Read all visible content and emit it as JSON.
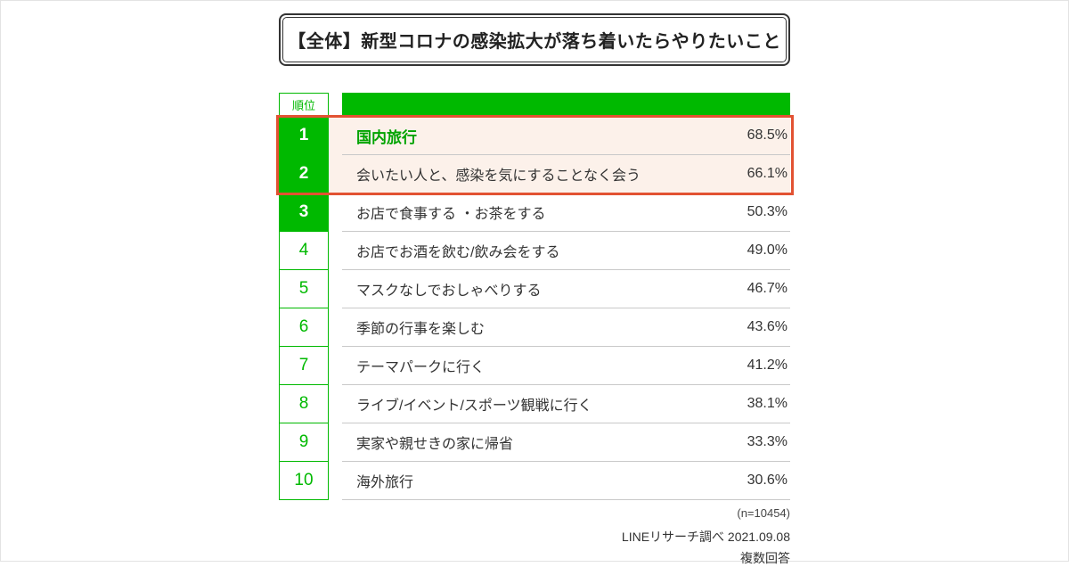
{
  "colors": {
    "green": "#00b900",
    "highlight_border": "#e25232",
    "highlight_bg": "#fcf1ea"
  },
  "title": "【全体】新型コロナの感染拡大が落ち着いたらやりたいこと",
  "table": {
    "rank_header": "順位",
    "rows": [
      {
        "rank": "1",
        "label": "国内旅行",
        "value": "68.5%"
      },
      {
        "rank": "2",
        "label": "会いたい人と、感染を気にすることなく会う",
        "value": "66.1%"
      },
      {
        "rank": "3",
        "label": "お店で食事する ・お茶をする",
        "value": "50.3%"
      },
      {
        "rank": "4",
        "label": "お店でお酒を飲む/飲み会をする",
        "value": "49.0%"
      },
      {
        "rank": "5",
        "label": "マスクなしでおしゃべりする",
        "value": "46.7%"
      },
      {
        "rank": "6",
        "label": "季節の行事を楽しむ",
        "value": "43.6%"
      },
      {
        "rank": "7",
        "label": "テーマパークに行く",
        "value": "41.2%"
      },
      {
        "rank": "8",
        "label": "ライブ/イベント/スポーツ観戦に行く",
        "value": "38.1%"
      },
      {
        "rank": "9",
        "label": "実家や親せきの家に帰省",
        "value": "33.3%"
      },
      {
        "rank": "10",
        "label": "海外旅行",
        "value": "30.6%"
      }
    ]
  },
  "footer": {
    "sample_size": "(n=10454)",
    "source": "LINEリサーチ調べ 2021.09.08",
    "note": "複数回答"
  },
  "chart_data": {
    "type": "table",
    "title": "【全体】新型コロナの感染拡大が落ち着いたらやりたいこと",
    "categories": [
      "国内旅行",
      "会いたい人と、感染を気にすることなく会う",
      "お店で食事する ・お茶をする",
      "お店でお酒を飲む/飲み会をする",
      "マスクなしでおしゃべりする",
      "季節の行事を楽しむ",
      "テーマパークに行く",
      "ライブ/イベント/スポーツ観戦に行く",
      "実家や親せきの家に帰省",
      "海外旅行"
    ],
    "values": [
      68.5,
      66.1,
      50.3,
      49.0,
      46.7,
      43.6,
      41.2,
      38.1,
      33.3,
      30.6
    ],
    "unit": "%",
    "ranks": [
      1,
      2,
      3,
      4,
      5,
      6,
      7,
      8,
      9,
      10
    ],
    "highlighted_ranks": [
      1,
      2
    ],
    "n": 10454,
    "source": "LINEリサーチ調べ 2021.09.08",
    "note": "複数回答"
  }
}
